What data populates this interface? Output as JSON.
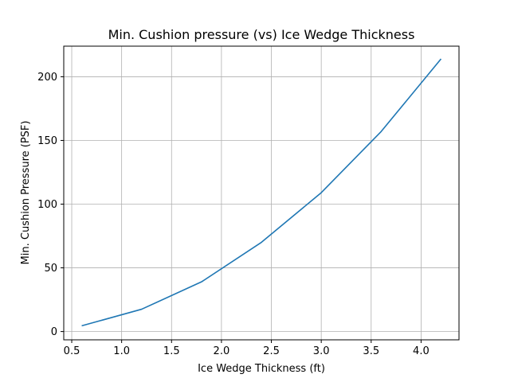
{
  "chart_data": {
    "type": "line",
    "title": "Min. Cushion pressure (vs) Ice Wedge Thickness",
    "xlabel": "Ice Wedge Thickness (ft)",
    "ylabel": "Min. Cushion Pressure (PSF)",
    "xlim": [
      0.42,
      4.38
    ],
    "ylim": [
      -6.5,
      224
    ],
    "x_ticks": [
      0.5,
      1.0,
      1.5,
      2.0,
      2.5,
      3.0,
      3.5,
      4.0
    ],
    "x_tick_labels": [
      "0.5",
      "1.0",
      "1.5",
      "2.0",
      "2.5",
      "3.0",
      "3.5",
      "4.0"
    ],
    "y_ticks": [
      0,
      50,
      100,
      150,
      200
    ],
    "y_tick_labels": [
      "0",
      "50",
      "100",
      "150",
      "200"
    ],
    "grid": true,
    "series": [
      {
        "color": "#1f77b4",
        "x": [
          0.6,
          1.2,
          1.8,
          2.4,
          3.0,
          3.6,
          4.2
        ],
        "y": [
          4.5,
          17.5,
          39,
          70,
          109,
          157,
          214
        ]
      }
    ]
  }
}
